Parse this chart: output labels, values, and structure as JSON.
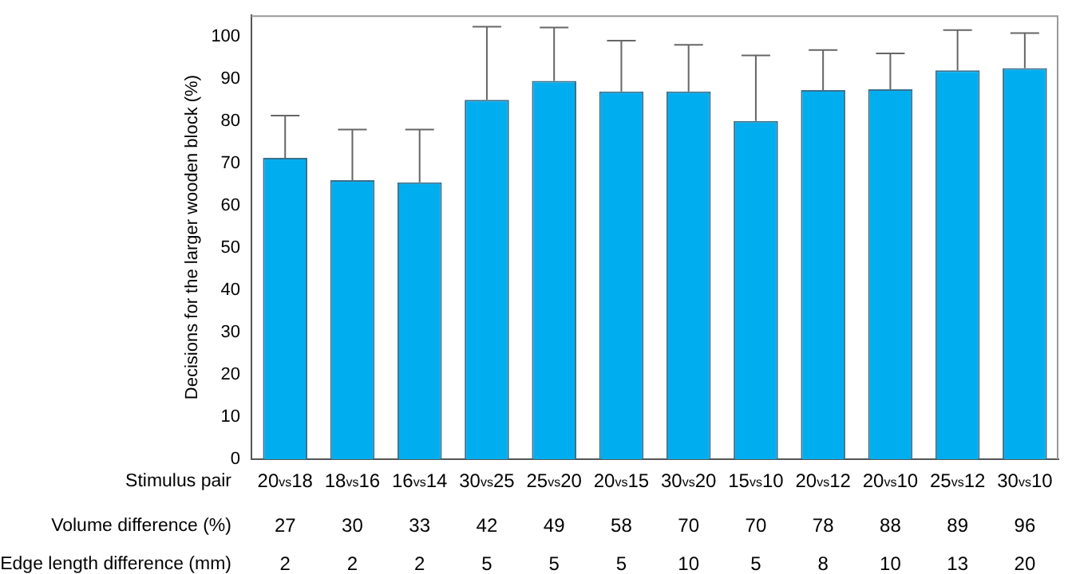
{
  "chart_data": {
    "type": "bar",
    "ylabel": "Decisions for the larger wooden block (%)",
    "xlabel": "Stimulus pair",
    "categories": [
      "20$_{vs}$18",
      "18$_{vs}$16",
      "16$_{vs}$14",
      "30$_{vs}$25",
      "25$_{vs}$20",
      "20$_{vs}$15",
      "30$_{vs}$20",
      "15$_{vs}$10",
      "20$_{vs}$12",
      "20$_{vs}$10",
      "25$_{vs}$12",
      "30$_{vs}$10"
    ],
    "values": [
      71.3,
      66,
      65.5,
      85,
      89.5,
      87,
      87,
      80,
      87.3,
      87.5,
      92,
      92.5
    ],
    "errors": [
      [
        71.3,
        81.3
      ],
      [
        66,
        78
      ],
      [
        65.5,
        78
      ],
      [
        85,
        102.3
      ],
      [
        89.5,
        102.1
      ],
      [
        87,
        99
      ],
      [
        87,
        98
      ],
      [
        80,
        95.5
      ],
      [
        87.3,
        96.8
      ],
      [
        87.5,
        96
      ],
      [
        92,
        101.5
      ],
      [
        92.5,
        100.8
      ]
    ],
    "color": "#00aeef",
    "ylim": [
      0,
      105
    ],
    "yticks": [
      0,
      10,
      20,
      30,
      40,
      50,
      60,
      70,
      80,
      90,
      100
    ],
    "grid": false,
    "legend": false,
    "annotations": [
      "Volume difference (%)",
      "27",
      "30",
      "33",
      "42",
      "49",
      "58",
      "70",
      "70",
      "78",
      "88",
      "89",
      "96",
      "Edge length difference (mm)",
      "2",
      "2",
      "2",
      "5",
      "5",
      "5",
      "10",
      "5",
      "8",
      "10",
      "13",
      "20"
    ]
  }
}
